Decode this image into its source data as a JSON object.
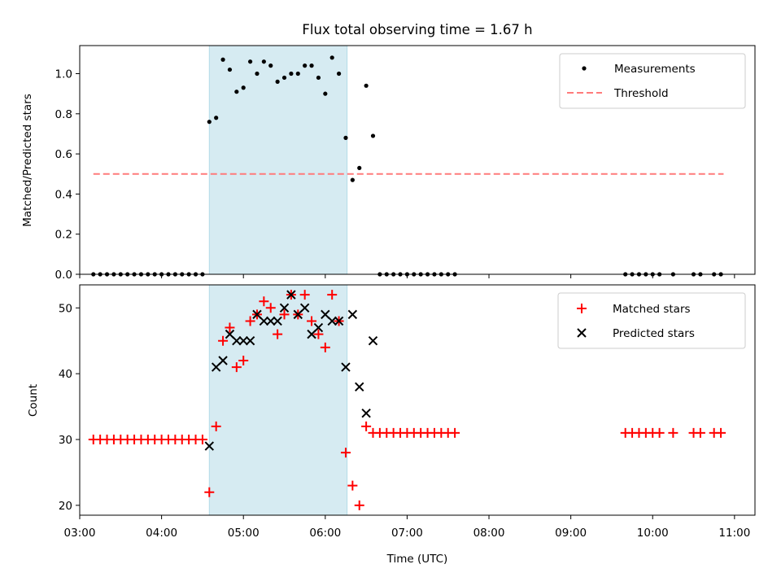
{
  "chart_data": [
    {
      "type": "scatter",
      "title": "Flux total observing time = 1.67 h",
      "ylabel": "Matched/Predicted stars",
      "xlim": [
        "03:00",
        "11:15"
      ],
      "ylim": [
        0,
        1.14
      ],
      "yticks": [
        "0.0",
        "0.2",
        "0.4",
        "0.6",
        "0.8",
        "1.0"
      ],
      "shaded_interval": [
        "04:35",
        "06:16"
      ],
      "legend": {
        "placement": "top-right",
        "entries": [
          "Measurements",
          "Threshold"
        ]
      },
      "threshold": {
        "value": 0.5,
        "from": "03:10",
        "to": "10:52",
        "color": "#ff7b7b"
      },
      "series": [
        {
          "name": "Measurements",
          "marker": "dot",
          "color": "#000000",
          "points": [
            [
              "03:10",
              0
            ],
            [
              "03:15",
              0
            ],
            [
              "03:20",
              0
            ],
            [
              "03:25",
              0
            ],
            [
              "03:30",
              0
            ],
            [
              "03:35",
              0
            ],
            [
              "03:40",
              0
            ],
            [
              "03:45",
              0
            ],
            [
              "03:50",
              0
            ],
            [
              "03:55",
              0
            ],
            [
              "04:00",
              0
            ],
            [
              "04:05",
              0
            ],
            [
              "04:10",
              0
            ],
            [
              "04:15",
              0
            ],
            [
              "04:20",
              0
            ],
            [
              "04:25",
              0
            ],
            [
              "04:30",
              0
            ],
            [
              "04:35",
              0.76
            ],
            [
              "04:40",
              0.78
            ],
            [
              "04:45",
              1.07
            ],
            [
              "04:50",
              1.02
            ],
            [
              "04:55",
              0.91
            ],
            [
              "05:00",
              0.93
            ],
            [
              "05:05",
              1.06
            ],
            [
              "05:10",
              1.0
            ],
            [
              "05:15",
              1.06
            ],
            [
              "05:20",
              1.04
            ],
            [
              "05:25",
              0.96
            ],
            [
              "05:30",
              0.98
            ],
            [
              "05:35",
              1.0
            ],
            [
              "05:40",
              1.0
            ],
            [
              "05:45",
              1.04
            ],
            [
              "05:50",
              1.04
            ],
            [
              "05:55",
              0.98
            ],
            [
              "06:00",
              0.9
            ],
            [
              "06:05",
              1.08
            ],
            [
              "06:10",
              1.0
            ],
            [
              "06:15",
              0.68
            ],
            [
              "06:20",
              0.47
            ],
            [
              "06:25",
              0.53
            ],
            [
              "06:30",
              0.94
            ],
            [
              "06:35",
              0.69
            ],
            [
              "06:40",
              0
            ],
            [
              "06:45",
              0
            ],
            [
              "06:50",
              0
            ],
            [
              "06:55",
              0
            ],
            [
              "07:00",
              0
            ],
            [
              "07:05",
              0
            ],
            [
              "07:10",
              0
            ],
            [
              "07:15",
              0
            ],
            [
              "07:20",
              0
            ],
            [
              "07:25",
              0
            ],
            [
              "07:30",
              0
            ],
            [
              "07:35",
              0
            ],
            [
              "09:40",
              0
            ],
            [
              "09:45",
              0
            ],
            [
              "09:50",
              0
            ],
            [
              "09:55",
              0
            ],
            [
              "10:00",
              0
            ],
            [
              "10:05",
              0
            ],
            [
              "10:15",
              0
            ],
            [
              "10:30",
              0
            ],
            [
              "10:35",
              0
            ],
            [
              "10:45",
              0
            ],
            [
              "10:50",
              0
            ]
          ]
        }
      ]
    },
    {
      "type": "scatter",
      "xlabel": "Time (UTC)",
      "ylabel": "Count",
      "xlim": [
        "03:00",
        "11:15"
      ],
      "ylim": [
        18.5,
        53.5
      ],
      "yticks": [
        "20",
        "30",
        "40",
        "50"
      ],
      "xticks": [
        "03:00",
        "04:00",
        "05:00",
        "06:00",
        "07:00",
        "08:00",
        "09:00",
        "10:00",
        "11:00"
      ],
      "shaded_interval": [
        "04:35",
        "06:16"
      ],
      "legend": {
        "placement": "top-right",
        "entries": [
          "Matched stars",
          "Predicted stars"
        ]
      },
      "series": [
        {
          "name": "Matched stars",
          "marker": "plus",
          "color": "#ff0000",
          "points": [
            [
              "03:10",
              30
            ],
            [
              "03:15",
              30
            ],
            [
              "03:20",
              30
            ],
            [
              "03:25",
              30
            ],
            [
              "03:30",
              30
            ],
            [
              "03:35",
              30
            ],
            [
              "03:40",
              30
            ],
            [
              "03:45",
              30
            ],
            [
              "03:50",
              30
            ],
            [
              "03:55",
              30
            ],
            [
              "04:00",
              30
            ],
            [
              "04:05",
              30
            ],
            [
              "04:10",
              30
            ],
            [
              "04:15",
              30
            ],
            [
              "04:20",
              30
            ],
            [
              "04:25",
              30
            ],
            [
              "04:30",
              30
            ],
            [
              "04:35",
              22
            ],
            [
              "04:40",
              32
            ],
            [
              "04:45",
              45
            ],
            [
              "04:50",
              47
            ],
            [
              "04:55",
              41
            ],
            [
              "05:00",
              42
            ],
            [
              "05:05",
              48
            ],
            [
              "05:10",
              49
            ],
            [
              "05:15",
              51
            ],
            [
              "05:20",
              50
            ],
            [
              "05:25",
              46
            ],
            [
              "05:30",
              49
            ],
            [
              "05:35",
              52
            ],
            [
              "05:40",
              49
            ],
            [
              "05:45",
              52
            ],
            [
              "05:50",
              48
            ],
            [
              "05:55",
              46
            ],
            [
              "06:00",
              44
            ],
            [
              "06:05",
              52
            ],
            [
              "06:10",
              48
            ],
            [
              "06:15",
              28
            ],
            [
              "06:20",
              23
            ],
            [
              "06:25",
              20
            ],
            [
              "06:30",
              32
            ],
            [
              "06:35",
              31
            ],
            [
              "06:40",
              31
            ],
            [
              "06:45",
              31
            ],
            [
              "06:50",
              31
            ],
            [
              "06:55",
              31
            ],
            [
              "07:00",
              31
            ],
            [
              "07:05",
              31
            ],
            [
              "07:10",
              31
            ],
            [
              "07:15",
              31
            ],
            [
              "07:20",
              31
            ],
            [
              "07:25",
              31
            ],
            [
              "07:30",
              31
            ],
            [
              "07:35",
              31
            ],
            [
              "09:40",
              31
            ],
            [
              "09:45",
              31
            ],
            [
              "09:50",
              31
            ],
            [
              "09:55",
              31
            ],
            [
              "10:00",
              31
            ],
            [
              "10:05",
              31
            ],
            [
              "10:15",
              31
            ],
            [
              "10:30",
              31
            ],
            [
              "10:35",
              31
            ],
            [
              "10:45",
              31
            ],
            [
              "10:50",
              31
            ]
          ]
        },
        {
          "name": "Predicted stars",
          "marker": "x",
          "color": "#000000",
          "points": [
            [
              "04:35",
              29
            ],
            [
              "04:40",
              41
            ],
            [
              "04:45",
              42
            ],
            [
              "04:50",
              46
            ],
            [
              "04:55",
              45
            ],
            [
              "05:00",
              45
            ],
            [
              "05:05",
              45
            ],
            [
              "05:10",
              49
            ],
            [
              "05:15",
              48
            ],
            [
              "05:20",
              48
            ],
            [
              "05:25",
              48
            ],
            [
              "05:30",
              50
            ],
            [
              "05:35",
              52
            ],
            [
              "05:40",
              49
            ],
            [
              "05:45",
              50
            ],
            [
              "05:50",
              46
            ],
            [
              "05:55",
              47
            ],
            [
              "06:00",
              49
            ],
            [
              "06:05",
              48
            ],
            [
              "06:10",
              48
            ],
            [
              "06:15",
              41
            ],
            [
              "06:20",
              49
            ],
            [
              "06:25",
              38
            ],
            [
              "06:30",
              34
            ],
            [
              "06:35",
              45
            ]
          ]
        }
      ]
    }
  ]
}
